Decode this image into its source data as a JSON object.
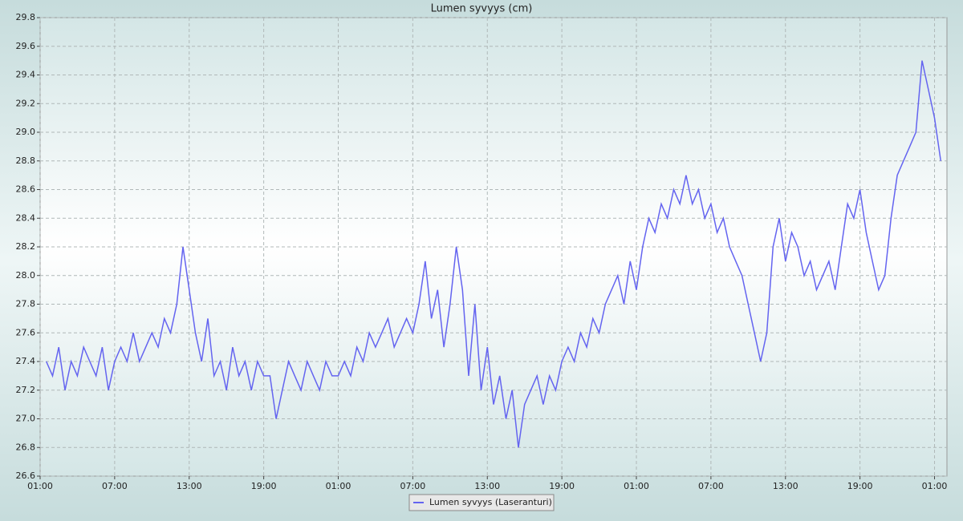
{
  "chart_data": {
    "type": "line",
    "title": "Lumen syvyys (cm)",
    "x": [
      0.5,
      1,
      1.5,
      2,
      2.5,
      3,
      3.5,
      4,
      4.5,
      5,
      5.5,
      6,
      6.5,
      7,
      7.5,
      8,
      8.5,
      9,
      9.5,
      10,
      10.5,
      11,
      11.5,
      12,
      12.5,
      13,
      13.5,
      14,
      14.5,
      15,
      15.5,
      16,
      16.5,
      17,
      17.5,
      18,
      18.5,
      19,
      19.5,
      20,
      20.5,
      21,
      21.5,
      22,
      22.5,
      23,
      23.5,
      24,
      24.5,
      25,
      25.5,
      26,
      26.5,
      27,
      27.5,
      28,
      28.5,
      29,
      29.5,
      30,
      30.5,
      31,
      31.5,
      32,
      32.5,
      33,
      33.5,
      34,
      34.5,
      35,
      35.5,
      36,
      36.5,
      37,
      37.5,
      38,
      38.5,
      39,
      39.5,
      40,
      40.5,
      41,
      41.5,
      42,
      42.5,
      43,
      43.5,
      44,
      44.5,
      45,
      45.5,
      46,
      46.5,
      47,
      47.5,
      48,
      48.5,
      49,
      49.5,
      50,
      50.5,
      51,
      51.5,
      52,
      52.5,
      53,
      53.5,
      54,
      54.5,
      55,
      55.5,
      56,
      56.5,
      57,
      57.5,
      58,
      58.5,
      59,
      59.5,
      60,
      60.5,
      61,
      61.5,
      62,
      62.5,
      63,
      63.5,
      64,
      64.5,
      65,
      65.5,
      66,
      66.5,
      67,
      67.5,
      68,
      68.5,
      69,
      69.5,
      70,
      70.5,
      71,
      71.5,
      72,
      72.5
    ],
    "series": [
      {
        "name": "Lumen syvyys (Laseranturi)",
        "color": "#6464f0",
        "values": [
          27.4,
          27.3,
          27.5,
          27.2,
          27.4,
          27.3,
          27.5,
          27.4,
          27.3,
          27.5,
          27.2,
          27.4,
          27.5,
          27.4,
          27.6,
          27.4,
          27.5,
          27.6,
          27.5,
          27.7,
          27.6,
          27.8,
          28.2,
          27.9,
          27.6,
          27.4,
          27.7,
          27.3,
          27.4,
          27.2,
          27.5,
          27.3,
          27.4,
          27.2,
          27.4,
          27.3,
          27.3,
          27.0,
          27.2,
          27.4,
          27.3,
          27.2,
          27.4,
          27.3,
          27.2,
          27.4,
          27.3,
          27.3,
          27.4,
          27.3,
          27.5,
          27.4,
          27.6,
          27.5,
          27.6,
          27.7,
          27.5,
          27.6,
          27.7,
          27.6,
          27.8,
          28.1,
          27.7,
          27.9,
          27.5,
          27.8,
          28.2,
          27.9,
          27.3,
          27.8,
          27.2,
          27.5,
          27.1,
          27.3,
          27.0,
          27.2,
          26.8,
          27.1,
          27.2,
          27.3,
          27.1,
          27.3,
          27.2,
          27.4,
          27.5,
          27.4,
          27.6,
          27.5,
          27.7,
          27.6,
          27.8,
          27.9,
          28.0,
          27.8,
          28.1,
          27.9,
          28.2,
          28.4,
          28.3,
          28.5,
          28.4,
          28.6,
          28.5,
          28.7,
          28.5,
          28.6,
          28.4,
          28.5,
          28.3,
          28.4,
          28.2,
          28.1,
          28.0,
          27.8,
          27.6,
          27.4,
          27.6,
          28.2,
          28.4,
          28.1,
          28.3,
          28.2,
          28.0,
          28.1,
          27.9,
          28.0,
          28.1,
          27.9,
          28.2,
          28.5,
          28.4,
          28.6,
          28.3,
          28.1,
          27.9,
          28.0,
          28.4,
          28.7,
          28.8,
          28.9,
          29.0,
          29.5,
          29.3,
          29.1,
          28.8
        ]
      }
    ],
    "xlim": [
      0,
      73
    ],
    "xticks": [
      {
        "value": 0,
        "label": "01:00"
      },
      {
        "value": 6,
        "label": "07:00"
      },
      {
        "value": 12,
        "label": "13:00"
      },
      {
        "value": 18,
        "label": "19:00"
      },
      {
        "value": 24,
        "label": "01:00"
      },
      {
        "value": 30,
        "label": "07:00"
      },
      {
        "value": 36,
        "label": "13:00"
      },
      {
        "value": 42,
        "label": "19:00"
      },
      {
        "value": 48,
        "label": "01:00"
      },
      {
        "value": 54,
        "label": "07:00"
      },
      {
        "value": 60,
        "label": "13:00"
      },
      {
        "value": 66,
        "label": "19:00"
      },
      {
        "value": 72,
        "label": "01:00"
      }
    ],
    "ylim": [
      26.6,
      29.8
    ],
    "yticks": [
      26.6,
      26.8,
      {
        "value": 27,
        "label": "27.0"
      },
      27.2,
      27.4,
      27.6,
      27.8,
      {
        "value": 28,
        "label": "28.0"
      },
      28.2,
      28.4,
      28.6,
      28.8,
      {
        "value": 29,
        "label": "29.0"
      },
      29.2,
      29.4,
      29.6,
      29.8
    ],
    "grid": true
  }
}
